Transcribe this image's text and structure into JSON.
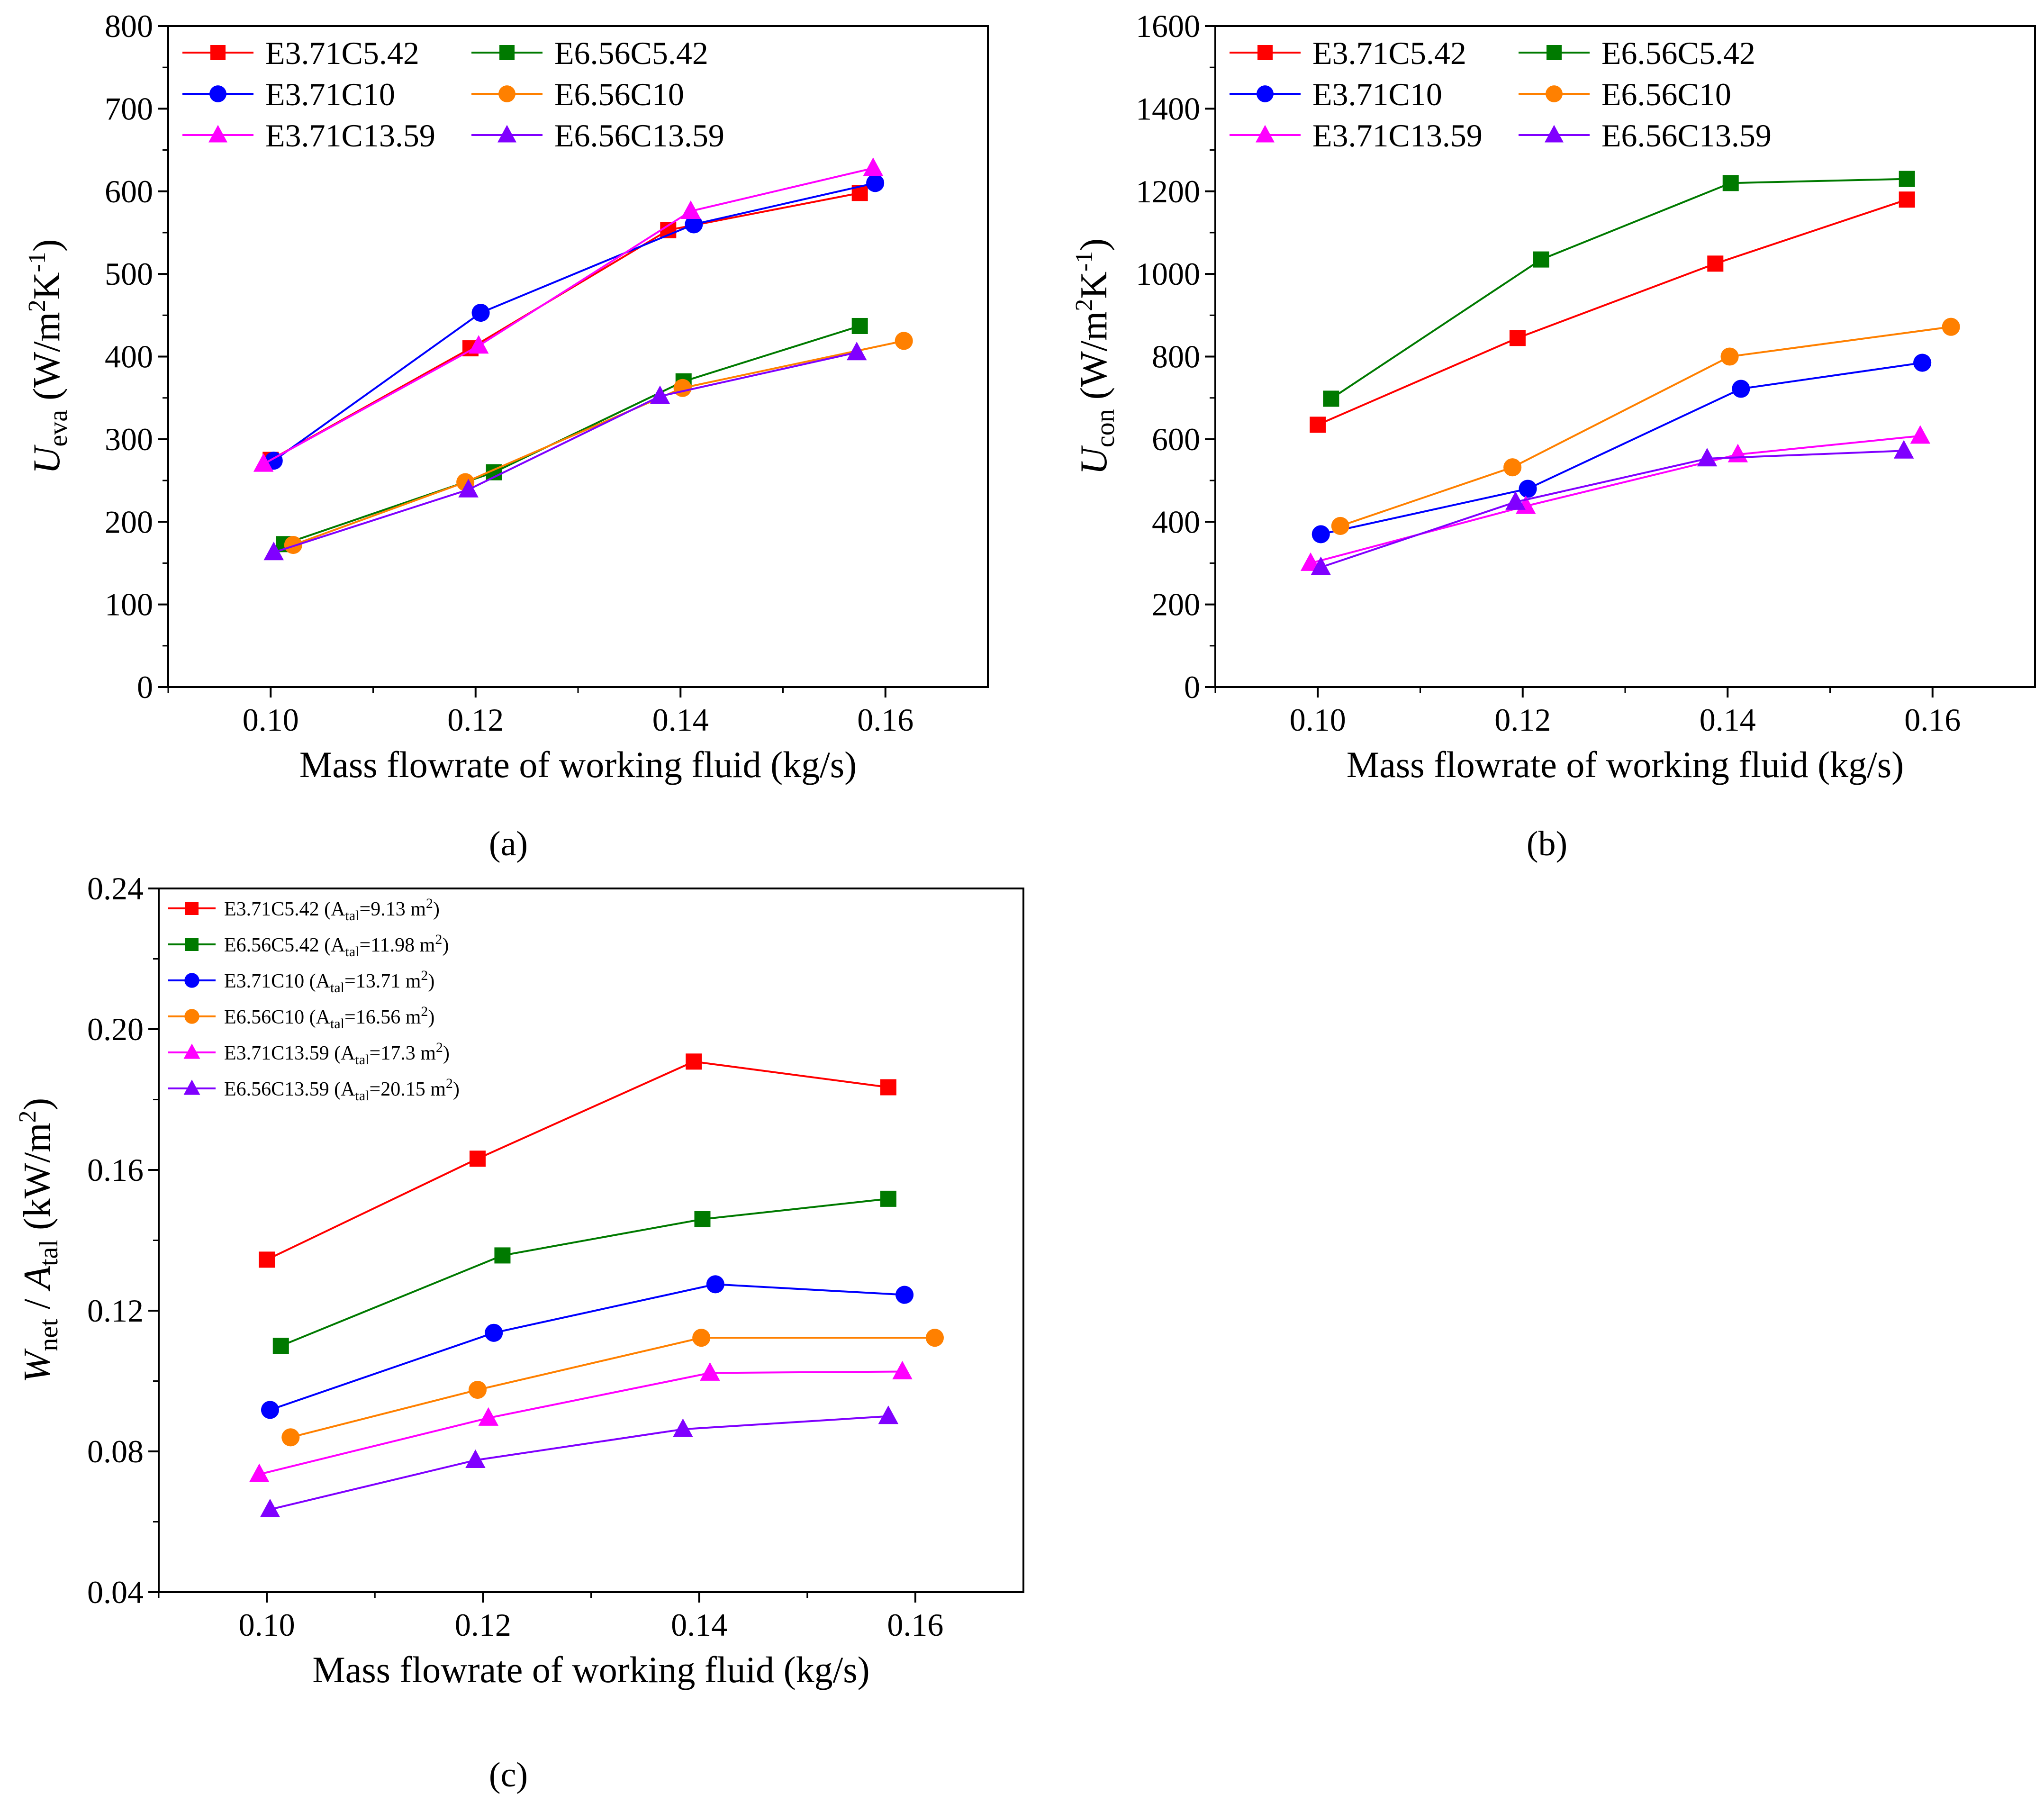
{
  "chart_data": [
    {
      "panel": "a",
      "caption": "(a)",
      "type": "line",
      "xlabel": "Mass flowrate of working fluid (kg/s)",
      "ylabel": {
        "main": "U",
        "sub": "eva",
        "unit_pre": " (W/m",
        "sup1": "2",
        "unit_mid": "K",
        "sup2": "-1",
        "unit_post": ")"
      },
      "xlim": [
        0.09,
        0.17
      ],
      "ylim": [
        0,
        800
      ],
      "xticks": [
        0.1,
        0.12,
        0.14,
        0.16
      ],
      "xtick_labels": [
        "0.10",
        "0.12",
        "0.14",
        "0.16"
      ],
      "yticks": [
        0,
        100,
        200,
        300,
        400,
        500,
        600,
        700,
        800
      ],
      "ytick_labels": [
        "0",
        "100",
        "200",
        "300",
        "400",
        "500",
        "600",
        "700",
        "800"
      ],
      "legend_position": "top-left, two columns",
      "series": [
        {
          "name": "E3.71C5.42",
          "color": "#ff0000",
          "marker": "square",
          "x": [
            0.1,
            0.1195,
            0.1388,
            0.1575
          ],
          "y": [
            275,
            410,
            553,
            598
          ]
        },
        {
          "name": "E6.56C5.42",
          "color": "#007a00",
          "marker": "square",
          "x": [
            0.1013,
            0.1218,
            0.1403,
            0.1575
          ],
          "y": [
            173,
            260,
            370,
            437
          ]
        },
        {
          "name": "E3.71C10",
          "color": "#0000ff",
          "marker": "circle",
          "x": [
            0.1003,
            0.1205,
            0.1413,
            0.159
          ],
          "y": [
            274,
            453,
            560,
            610
          ]
        },
        {
          "name": "E6.56C10",
          "color": "#ff8000",
          "marker": "circle",
          "x": [
            0.1022,
            0.119,
            0.1402,
            0.1618
          ],
          "y": [
            172,
            248,
            362,
            419
          ]
        },
        {
          "name": "E3.71C13.59",
          "color": "#ff00ff",
          "marker": "triangle",
          "x": [
            0.0993,
            0.1203,
            0.141,
            0.1588
          ],
          "y": [
            270,
            413,
            576,
            628
          ]
        },
        {
          "name": "E6.56C13.59",
          "color": "#8000ff",
          "marker": "triangle",
          "x": [
            0.1003,
            0.1193,
            0.138,
            0.1572
          ],
          "y": [
            163,
            239,
            352,
            405
          ]
        }
      ]
    },
    {
      "panel": "b",
      "caption": "(b)",
      "type": "line",
      "xlabel": "Mass flowrate of working fluid (kg/s)",
      "ylabel": {
        "main": "U",
        "sub": "con",
        "unit_pre": " (W/m",
        "sup1": "2",
        "unit_mid": "K",
        "sup2": "-1",
        "unit_post": ")"
      },
      "xlim": [
        0.09,
        0.17
      ],
      "ylim": [
        0,
        1600
      ],
      "xticks": [
        0.1,
        0.12,
        0.14,
        0.16
      ],
      "xtick_labels": [
        "0.10",
        "0.12",
        "0.14",
        "0.16"
      ],
      "yticks": [
        0,
        200,
        400,
        600,
        800,
        1000,
        1200,
        1400,
        1600
      ],
      "ytick_labels": [
        "0",
        "200",
        "400",
        "600",
        "800",
        "1000",
        "1200",
        "1400",
        "1600"
      ],
      "legend_position": "top-left, two columns",
      "series": [
        {
          "name": "E3.71C5.42",
          "color": "#ff0000",
          "marker": "square",
          "x": [
            0.1,
            0.1195,
            0.1388,
            0.1575
          ],
          "y": [
            635,
            845,
            1025,
            1180
          ]
        },
        {
          "name": "E6.56C5.42",
          "color": "#007a00",
          "marker": "square",
          "x": [
            0.1013,
            0.1218,
            0.1403,
            0.1575
          ],
          "y": [
            698,
            1035,
            1220,
            1230
          ]
        },
        {
          "name": "E3.71C10",
          "color": "#0000ff",
          "marker": "circle",
          "x": [
            0.1003,
            0.1205,
            0.1413,
            0.159
          ],
          "y": [
            370,
            480,
            722,
            785
          ]
        },
        {
          "name": "E6.56C10",
          "color": "#ff8000",
          "marker": "circle",
          "x": [
            0.1022,
            0.119,
            0.1402,
            0.1618
          ],
          "y": [
            390,
            532,
            800,
            872
          ]
        },
        {
          "name": "E3.71C13.59",
          "color": "#ff00ff",
          "marker": "triangle",
          "x": [
            0.0993,
            0.1203,
            0.141,
            0.1588
          ],
          "y": [
            300,
            438,
            563,
            608
          ]
        },
        {
          "name": "E6.56C13.59",
          "color": "#8000ff",
          "marker": "triangle",
          "x": [
            0.1003,
            0.1193,
            0.138,
            0.1572
          ],
          "y": [
            290,
            448,
            553,
            572
          ]
        }
      ]
    },
    {
      "panel": "c",
      "caption": "(c)",
      "type": "line",
      "xlabel": "Mass flowrate of working fluid (kg/s)",
      "ylabel": {
        "main": "W",
        "sub": "net",
        "mid": " / ",
        "main2": "A",
        "sub2": "tal",
        "unit_pre": " (kW/m",
        "sup1": "2",
        "unit_post": ")"
      },
      "xlim": [
        0.09,
        0.17
      ],
      "ylim": [
        0.04,
        0.24
      ],
      "xticks": [
        0.1,
        0.12,
        0.14,
        0.16
      ],
      "xtick_labels": [
        "0.10",
        "0.12",
        "0.14",
        "0.16"
      ],
      "yticks": [
        0.04,
        0.08,
        0.12,
        0.16,
        0.2,
        0.24
      ],
      "ytick_labels": [
        "0.04",
        "0.08",
        "0.12",
        "0.16",
        "0.20",
        "0.24"
      ],
      "legend_position": "top-left, one column",
      "series": [
        {
          "name": "E3.71C5.42",
          "legend_area": "9.13",
          "color": "#ff0000",
          "marker": "square",
          "x": [
            0.1,
            0.1195,
            0.1395,
            0.1575
          ],
          "y": [
            0.1345,
            0.1632,
            0.1908,
            0.1835
          ]
        },
        {
          "name": "E6.56C5.42",
          "legend_area": "11.98",
          "color": "#007a00",
          "marker": "square",
          "x": [
            0.1013,
            0.1218,
            0.1403,
            0.1575
          ],
          "y": [
            0.11,
            0.1357,
            0.146,
            0.1518
          ]
        },
        {
          "name": "E3.71C10",
          "legend_area": "13.71",
          "color": "#0000ff",
          "marker": "circle",
          "x": [
            0.1003,
            0.121,
            0.1415,
            0.159
          ],
          "y": [
            0.0918,
            0.1137,
            0.1275,
            0.1245
          ]
        },
        {
          "name": "E6.56C10",
          "legend_area": "16.56",
          "color": "#ff8000",
          "marker": "circle",
          "x": [
            0.1022,
            0.1195,
            0.1402,
            0.1618
          ],
          "y": [
            0.084,
            0.0975,
            0.1123,
            0.1123
          ]
        },
        {
          "name": "E3.71C13.59",
          "legend_area": "17.3",
          "color": "#ff00ff",
          "marker": "triangle",
          "x": [
            0.0993,
            0.1205,
            0.141,
            0.1588
          ],
          "y": [
            0.0735,
            0.0895,
            0.1023,
            0.1027
          ]
        },
        {
          "name": "E6.56C13.59",
          "legend_area": "20.15",
          "color": "#8000ff",
          "marker": "triangle",
          "x": [
            0.1003,
            0.1193,
            0.1385,
            0.1575
          ],
          "y": [
            0.0635,
            0.0775,
            0.0863,
            0.09
          ]
        }
      ]
    }
  ],
  "legend_c_text": {
    "area_symbol": "A",
    "area_sub": "tal",
    "eq": "=",
    "unit": " m",
    "unit_sup": "2",
    "open": " (",
    "close": ")"
  }
}
